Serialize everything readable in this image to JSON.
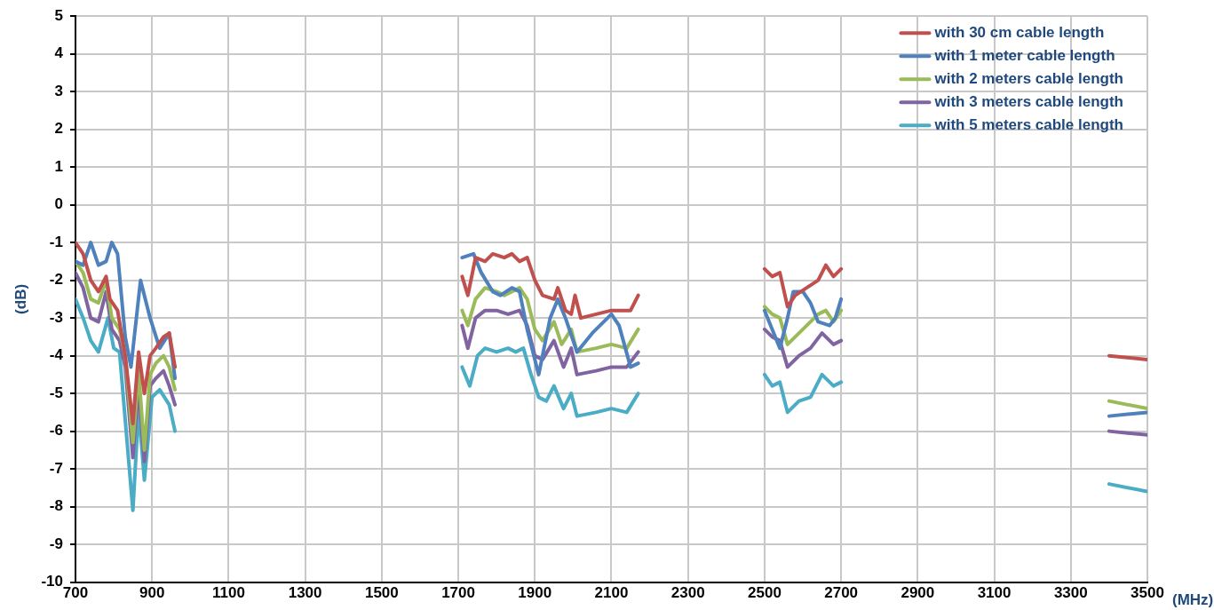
{
  "chart_data": {
    "type": "line",
    "xlabel": "(MHz)",
    "ylabel": "(dB)",
    "xlim": [
      700,
      3500
    ],
    "xticks": [
      700,
      900,
      1100,
      1300,
      1500,
      1700,
      1900,
      2100,
      2300,
      2500,
      2700,
      2900,
      3100,
      3300,
      3500
    ],
    "ylim": [
      -10,
      5
    ],
    "yticks": [
      -10,
      -9,
      -8,
      -7,
      -6,
      -5,
      -4,
      -3,
      -2,
      -1,
      0,
      1,
      2,
      3,
      4,
      5
    ],
    "grid": true,
    "legend": "top right",
    "marker": "none",
    "line_style": "solid",
    "series": [
      {
        "name": "with 30 cm cable length",
        "color": "#c0504d",
        "x": [
          700,
          720,
          740,
          760,
          780,
          790,
          810,
          830,
          850,
          865,
          880,
          895,
          910,
          930,
          945,
          960,
          1300,
          1710,
          1725,
          1745,
          1770,
          1790,
          1820,
          1840,
          1860,
          1880,
          1900,
          1920,
          1950,
          1960,
          1980,
          1995,
          2005,
          2020,
          2060,
          2100,
          2130,
          2150,
          2170,
          2300,
          2500,
          2520,
          2540,
          2560,
          2580,
          2610,
          2640,
          2660,
          2680,
          2700,
          3000,
          3400,
          3500
        ],
        "values": [
          -1.0,
          -1.3,
          -2.0,
          -2.3,
          -1.9,
          -2.5,
          -2.8,
          -4.0,
          -5.8,
          -3.9,
          -5.0,
          -4.0,
          -3.8,
          -3.5,
          -3.4,
          -4.3,
          null,
          -1.9,
          -2.4,
          -1.4,
          -1.5,
          -1.3,
          -1.4,
          -1.3,
          -1.5,
          -1.4,
          -2.0,
          -2.4,
          -2.5,
          -2.2,
          -2.8,
          -2.9,
          -2.4,
          -3.0,
          -2.9,
          -2.8,
          -2.8,
          -2.8,
          -2.4,
          null,
          -1.7,
          -1.9,
          -1.8,
          -2.7,
          -2.4,
          -2.2,
          -2.0,
          -1.6,
          -1.9,
          -1.7,
          null,
          -4.0,
          -4.1
        ]
      },
      {
        "name": "with 1 meter cable length",
        "color": "#4f81bd",
        "x": [
          700,
          720,
          740,
          760,
          780,
          795,
          810,
          830,
          845,
          870,
          895,
          920,
          945,
          960,
          1300,
          1710,
          1740,
          1760,
          1790,
          1810,
          1840,
          1860,
          1880,
          1910,
          1940,
          1960,
          1980,
          2010,
          2050,
          2100,
          2120,
          2150,
          2170,
          2300,
          2500,
          2520,
          2540,
          2560,
          2575,
          2600,
          2620,
          2640,
          2670,
          2685,
          2700,
          3000,
          3400,
          3500
        ],
        "values": [
          -1.5,
          -1.6,
          -1.0,
          -1.6,
          -1.5,
          -1.0,
          -1.3,
          -3.5,
          -4.3,
          -2.0,
          -3.0,
          -3.8,
          -3.4,
          -4.6,
          null,
          -1.4,
          -1.3,
          -1.8,
          -2.3,
          -2.4,
          -2.2,
          -2.3,
          -3.3,
          -4.5,
          -3.0,
          -2.5,
          -3.0,
          -3.9,
          -3.4,
          -2.9,
          -3.2,
          -4.3,
          -4.2,
          null,
          -2.8,
          -3.3,
          -3.8,
          -3.0,
          -2.3,
          -2.3,
          -2.6,
          -3.1,
          -3.2,
          -3.0,
          -2.5,
          null,
          -5.6,
          -5.5
        ]
      },
      {
        "name": "with 2 meters cable length",
        "color": "#9bbb59",
        "x": [
          700,
          720,
          740,
          760,
          780,
          795,
          815,
          830,
          850,
          865,
          880,
          895,
          910,
          930,
          945,
          960,
          1300,
          1710,
          1725,
          1745,
          1770,
          1800,
          1820,
          1840,
          1860,
          1880,
          1900,
          1920,
          1950,
          1970,
          1995,
          2010,
          2060,
          2100,
          2140,
          2170,
          2300,
          2500,
          2520,
          2540,
          2560,
          2590,
          2620,
          2640,
          2660,
          2680,
          2700,
          3000,
          3400,
          3500
        ],
        "values": [
          -1.5,
          -1.8,
          -2.5,
          -2.6,
          -2.0,
          -3.0,
          -3.3,
          -4.0,
          -6.3,
          -4.4,
          -6.5,
          -4.5,
          -4.2,
          -4.0,
          -4.3,
          -4.9,
          null,
          -2.8,
          -3.2,
          -2.5,
          -2.2,
          -2.3,
          -2.4,
          -2.3,
          -2.2,
          -2.5,
          -3.3,
          -3.6,
          -3.1,
          -3.7,
          -3.3,
          -3.9,
          -3.8,
          -3.7,
          -3.8,
          -3.3,
          null,
          -2.7,
          -2.9,
          -3.0,
          -3.7,
          -3.4,
          -3.1,
          -2.9,
          -2.8,
          -3.1,
          -2.8,
          null,
          -5.2,
          -5.4
        ]
      },
      {
        "name": "with 3 meters cable length",
        "color": "#8064a2",
        "x": [
          700,
          720,
          740,
          760,
          780,
          795,
          815,
          830,
          850,
          865,
          880,
          895,
          910,
          930,
          945,
          960,
          1300,
          1710,
          1725,
          1745,
          1770,
          1800,
          1830,
          1860,
          1880,
          1900,
          1920,
          1950,
          1975,
          1995,
          2010,
          2060,
          2100,
          2140,
          2170,
          2300,
          2500,
          2520,
          2540,
          2560,
          2590,
          2620,
          2650,
          2680,
          2700,
          3000,
          3400,
          3500
        ],
        "values": [
          -1.8,
          -2.2,
          -3.0,
          -3.1,
          -2.3,
          -3.3,
          -3.6,
          -4.3,
          -6.7,
          -4.8,
          -6.8,
          -4.8,
          -4.6,
          -4.4,
          -4.8,
          -5.3,
          null,
          -3.2,
          -3.8,
          -3.0,
          -2.8,
          -2.8,
          -2.9,
          -2.8,
          -3.2,
          -4.0,
          -4.1,
          -3.6,
          -4.3,
          -3.8,
          -4.5,
          -4.4,
          -4.3,
          -4.3,
          -3.9,
          null,
          -3.3,
          -3.5,
          -3.6,
          -4.3,
          -4.0,
          -3.8,
          -3.4,
          -3.7,
          -3.6,
          null,
          -6.0,
          -6.1
        ]
      },
      {
        "name": "with 5 meters cable length",
        "color": "#4bacc6",
        "x": [
          700,
          720,
          740,
          760,
          785,
          800,
          815,
          850,
          865,
          880,
          900,
          920,
          945,
          960,
          1300,
          1710,
          1730,
          1750,
          1770,
          1800,
          1830,
          1850,
          1870,
          1890,
          1910,
          1930,
          1950,
          1975,
          1995,
          2010,
          2060,
          2100,
          2140,
          2170,
          2300,
          2500,
          2520,
          2540,
          2560,
          2590,
          2620,
          2650,
          2680,
          2700,
          3000,
          3400,
          3500
        ],
        "values": [
          -2.5,
          -3.0,
          -3.6,
          -3.9,
          -3.0,
          -3.8,
          -3.9,
          -8.1,
          -5.4,
          -7.3,
          -5.1,
          -4.9,
          -5.3,
          -6.0,
          null,
          -4.3,
          -4.8,
          -4.0,
          -3.8,
          -3.9,
          -3.8,
          -3.9,
          -3.8,
          -4.5,
          -5.1,
          -5.2,
          -4.8,
          -5.4,
          -5.0,
          -5.6,
          -5.5,
          -5.4,
          -5.5,
          -5.0,
          null,
          -4.5,
          -4.8,
          -4.7,
          -5.5,
          -5.2,
          -5.1,
          -4.5,
          -4.8,
          -4.7,
          null,
          -7.4,
          -7.6
        ]
      }
    ]
  }
}
